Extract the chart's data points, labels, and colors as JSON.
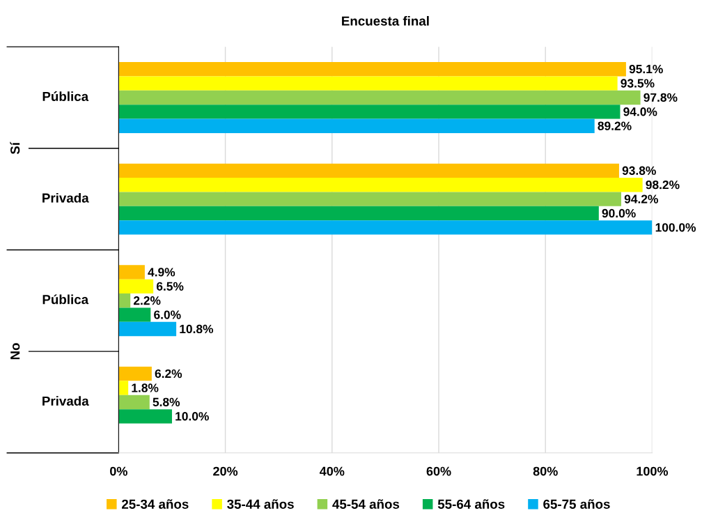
{
  "chart_data": {
    "type": "bar",
    "orientation": "horizontal",
    "title": "Encuesta final",
    "categories": [
      "Pública",
      "Privada",
      "Pública",
      "Privada"
    ],
    "annotations": [
      "Sí",
      "No"
    ],
    "series": [
      {
        "name": "25-34 años",
        "color": "#ffc000",
        "values": [
          95.1,
          93.8,
          4.9,
          6.2
        ],
        "value_labels": [
          "95.1%",
          "93.8%",
          "4.9%",
          "6.2%"
        ]
      },
      {
        "name": "35-44 años",
        "color": "#ffff00",
        "values": [
          93.5,
          98.2,
          6.5,
          1.8
        ],
        "value_labels": [
          "93.5%",
          "98.2%",
          "6.5%",
          "1.8%"
        ]
      },
      {
        "name": "45-54 años",
        "color": "#92d050",
        "values": [
          97.8,
          94.2,
          2.2,
          5.8
        ],
        "value_labels": [
          "97.8%",
          "94.2%",
          "2.2%",
          "5.8%"
        ]
      },
      {
        "name": "55-64 años",
        "color": "#00b050",
        "values": [
          94.0,
          90.0,
          6.0,
          10.0
        ],
        "value_labels": [
          "94.0%",
          "90.0%",
          "6.0%",
          "10.0%"
        ]
      },
      {
        "name": "65-75 años",
        "color": "#00b0f0",
        "values": [
          89.2,
          100.0,
          10.8,
          null
        ],
        "value_labels": [
          "89.2%",
          "100.0%",
          "10.8%",
          null
        ]
      }
    ],
    "xlim": [
      0,
      100
    ],
    "xticks": [
      {
        "value": 0,
        "label": "0%"
      },
      {
        "value": 20,
        "label": "20%"
      },
      {
        "value": 40,
        "label": "40%"
      },
      {
        "value": 60,
        "label": "60%"
      },
      {
        "value": 80,
        "label": "80%"
      },
      {
        "value": 100,
        "label": "100%"
      }
    ],
    "grid": "x",
    "legend": "bottom"
  }
}
